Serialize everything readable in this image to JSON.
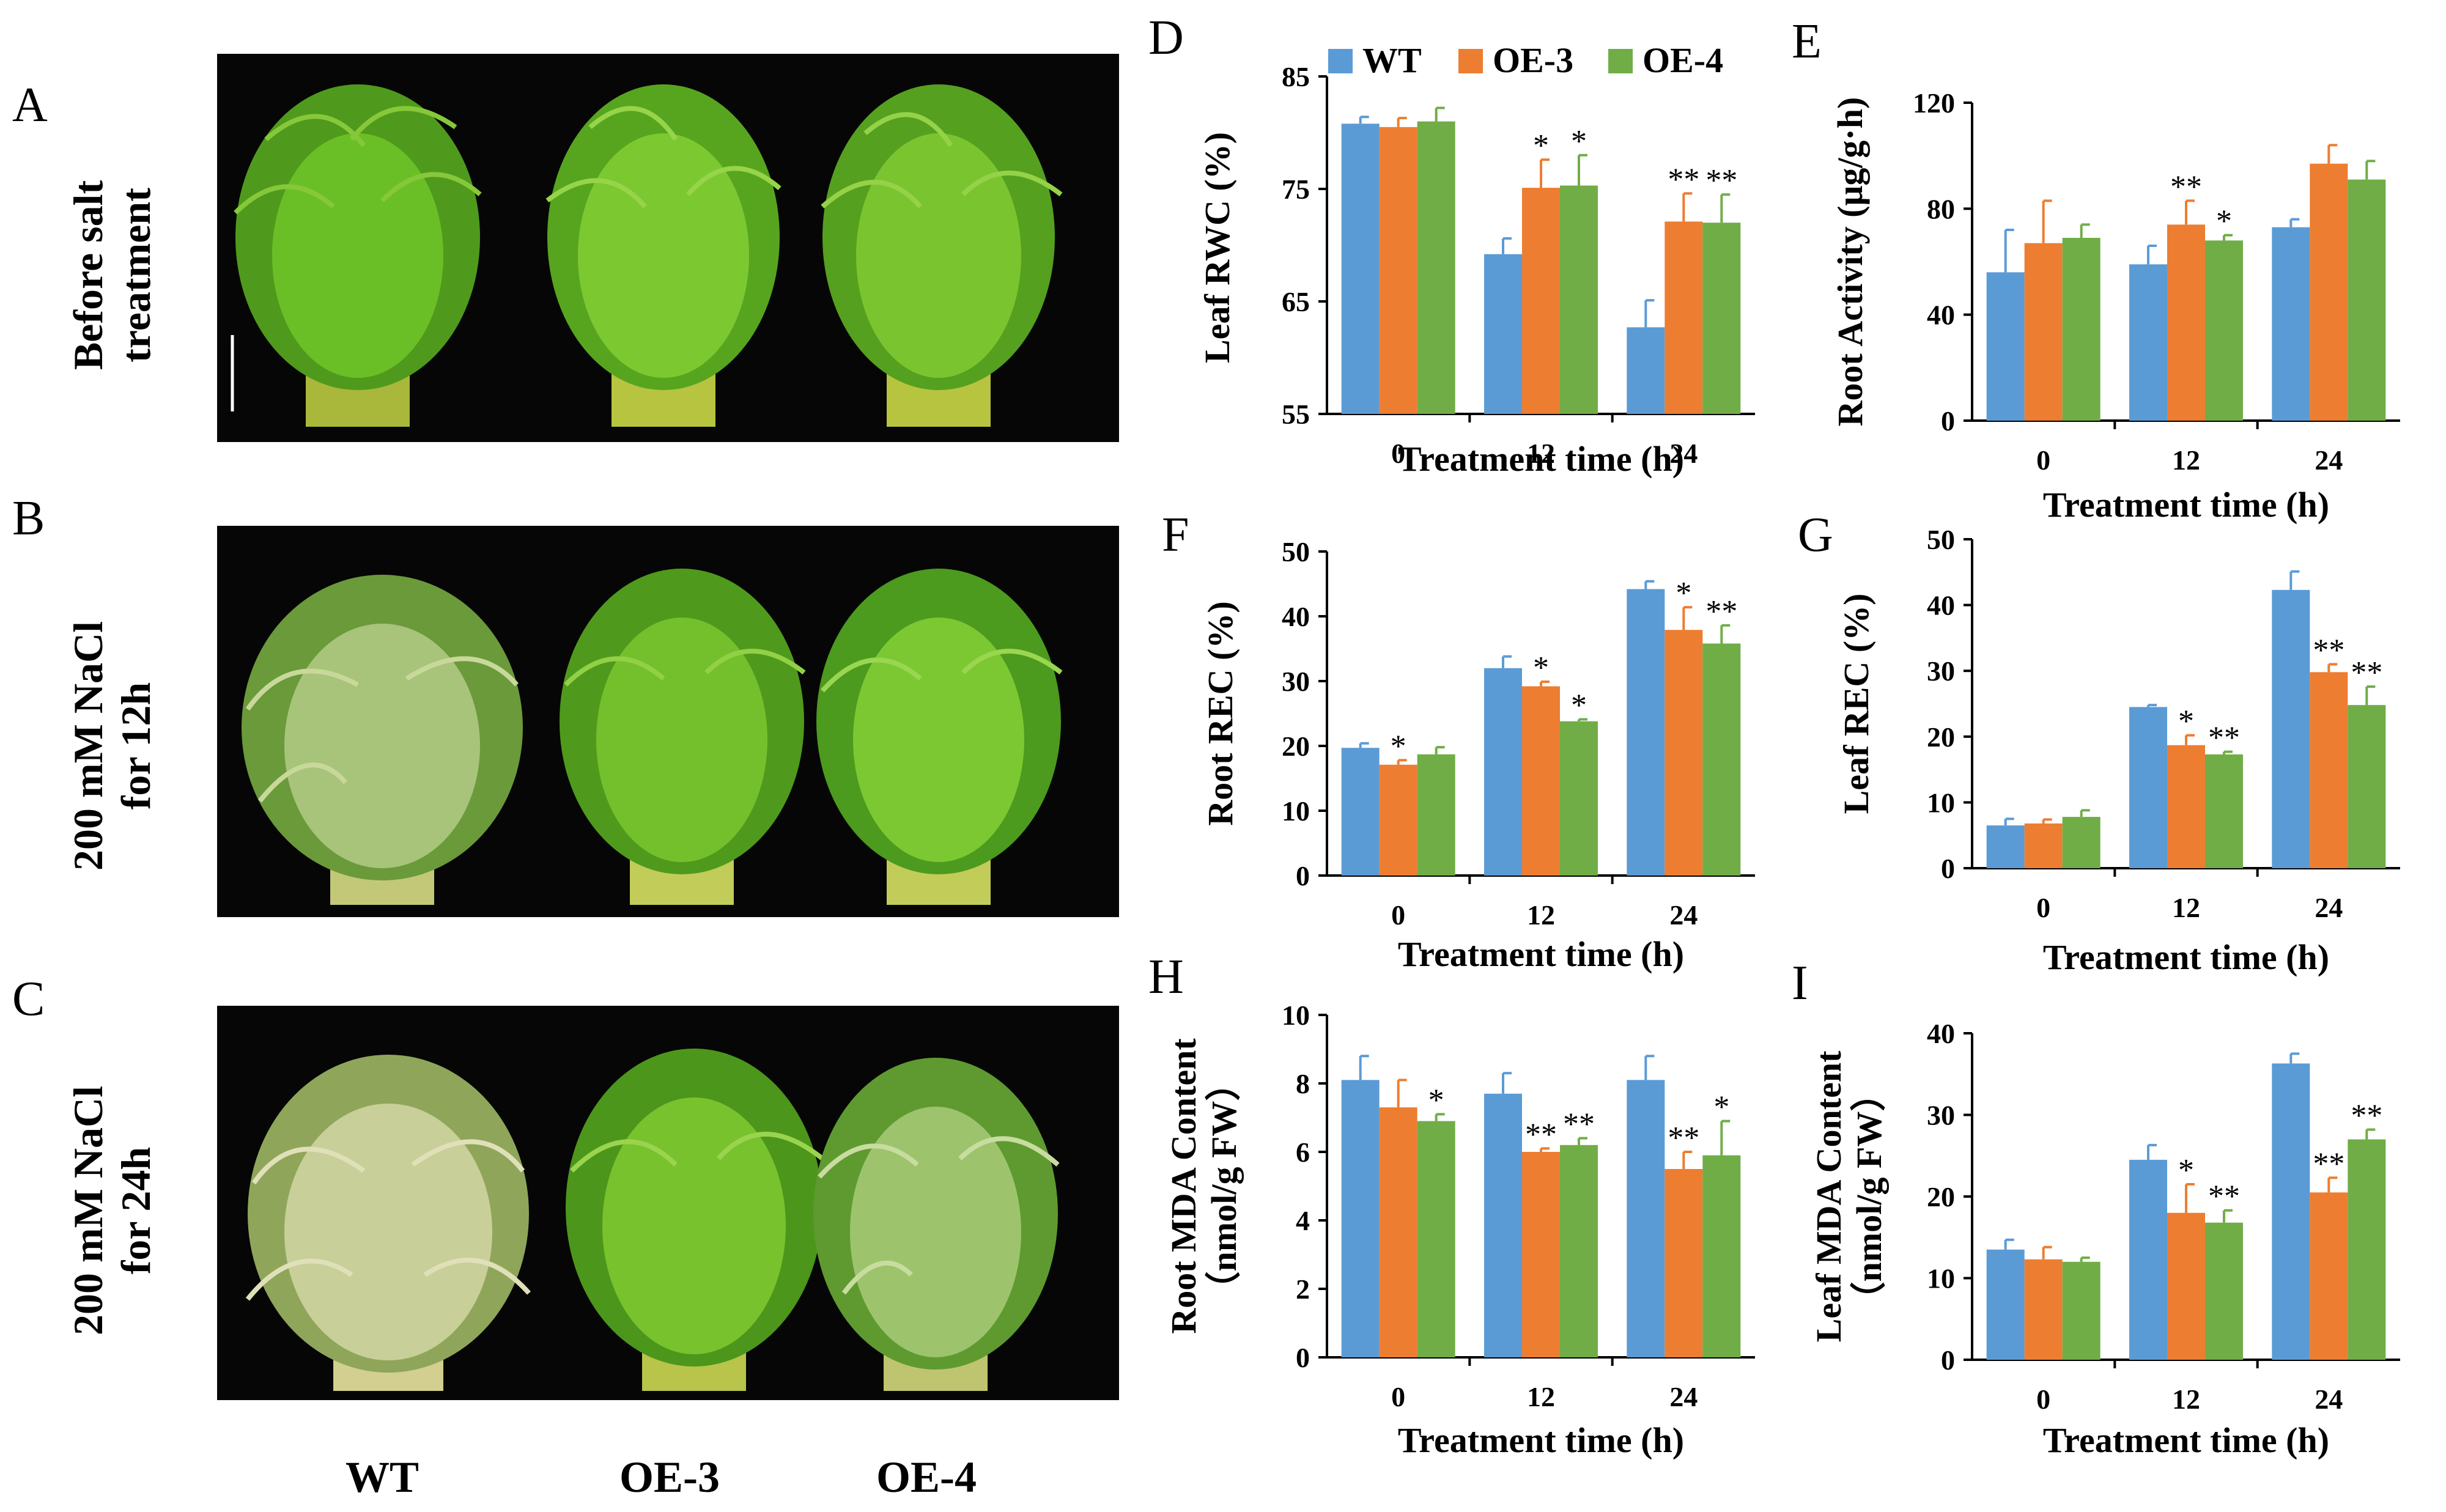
{
  "panel_letters": {
    "A": "A",
    "B": "B",
    "C": "C",
    "D": "D",
    "E": "E",
    "F": "F",
    "G": "G",
    "H": "H",
    "I": "I"
  },
  "photos": {
    "row_labels": [
      [
        "Before salt",
        "treatment"
      ],
      [
        "200 mM NaCl",
        "for 12h"
      ],
      [
        "200 mM NaCl",
        "for 24h"
      ]
    ],
    "column_labels": [
      "WT",
      "OE-3",
      "OE-4"
    ]
  },
  "legend": [
    {
      "name": "WT",
      "color": "#5B9BD5"
    },
    {
      "name": "OE-3",
      "color": "#ED7D31"
    },
    {
      "name": "OE-4",
      "color": "#70AD47"
    }
  ],
  "chart_data": [
    {
      "id": "D",
      "type": "bar",
      "categories": [
        "0",
        "12",
        "24"
      ],
      "xlabel": "Treatment time (h)",
      "ylabel": [
        "Leaf RWC (%)"
      ],
      "ylim": [
        55,
        85
      ],
      "yticks": [
        55,
        65,
        75,
        85
      ],
      "series": [
        {
          "name": "WT",
          "values": [
            80.8,
            69.2,
            62.7
          ],
          "errors": [
            0.6,
            1.4,
            2.4
          ],
          "stars": [
            "",
            "",
            ""
          ]
        },
        {
          "name": "OE-3",
          "values": [
            80.5,
            75.1,
            72.1
          ],
          "errors": [
            0.8,
            2.5,
            2.5
          ],
          "stars": [
            "",
            "*",
            "**"
          ]
        },
        {
          "name": "OE-4",
          "values": [
            81.0,
            75.3,
            72.0
          ],
          "errors": [
            1.2,
            2.7,
            2.5
          ],
          "stars": [
            "",
            "*",
            "**"
          ]
        }
      ]
    },
    {
      "id": "E",
      "type": "bar",
      "categories": [
        "0",
        "12",
        "24"
      ],
      "xlabel": "Treatment time (h)",
      "ylabel": [
        "Root Activity (μg/g·h)"
      ],
      "ylim": [
        0,
        120
      ],
      "yticks": [
        0,
        40,
        80,
        120
      ],
      "series": [
        {
          "name": "WT",
          "values": [
            56,
            59,
            73
          ],
          "errors": [
            16,
            7,
            3
          ],
          "stars": [
            "",
            "",
            ""
          ]
        },
        {
          "name": "OE-3",
          "values": [
            67,
            74,
            97
          ],
          "errors": [
            16,
            9,
            7
          ],
          "stars": [
            "",
            "**",
            ""
          ]
        },
        {
          "name": "OE-4",
          "values": [
            69,
            68,
            91
          ],
          "errors": [
            5,
            2,
            7
          ],
          "stars": [
            "",
            "*",
            ""
          ]
        }
      ]
    },
    {
      "id": "F",
      "type": "bar",
      "categories": [
        "0",
        "12",
        "24"
      ],
      "xlabel": "Treatment time (h)",
      "ylabel": [
        "Root REC (%)"
      ],
      "ylim": [
        0,
        50
      ],
      "yticks": [
        0,
        10,
        20,
        30,
        40,
        50
      ],
      "series": [
        {
          "name": "WT",
          "values": [
            19.7,
            32.0,
            44.2
          ],
          "errors": [
            0.7,
            1.8,
            1.2
          ],
          "stars": [
            "",
            "",
            ""
          ]
        },
        {
          "name": "OE-3",
          "values": [
            17.1,
            29.2,
            37.9
          ],
          "errors": [
            0.7,
            0.7,
            3.5
          ],
          "stars": [
            "*",
            "*",
            "*"
          ]
        },
        {
          "name": "OE-4",
          "values": [
            18.7,
            23.8,
            35.8
          ],
          "errors": [
            1.1,
            0.3,
            2.8
          ],
          "stars": [
            "",
            "*",
            "**"
          ]
        }
      ]
    },
    {
      "id": "G",
      "type": "bar",
      "categories": [
        "0",
        "12",
        "24"
      ],
      "xlabel": "Treatment time (h)",
      "ylabel": [
        "Leaf REC (%)"
      ],
      "ylim": [
        0,
        50
      ],
      "yticks": [
        0,
        10,
        20,
        30,
        40,
        50
      ],
      "series": [
        {
          "name": "WT",
          "values": [
            6.5,
            24.5,
            42.3
          ],
          "errors": [
            1.0,
            0.3,
            2.8
          ],
          "stars": [
            "",
            "",
            ""
          ]
        },
        {
          "name": "OE-3",
          "values": [
            6.8,
            18.7,
            29.8
          ],
          "errors": [
            0.6,
            1.5,
            1.2
          ],
          "stars": [
            "",
            "*",
            "**"
          ]
        },
        {
          "name": "OE-4",
          "values": [
            7.8,
            17.3,
            24.8
          ],
          "errors": [
            1.0,
            0.4,
            2.8
          ],
          "stars": [
            "",
            "**",
            "**"
          ]
        }
      ]
    },
    {
      "id": "H",
      "type": "bar",
      "categories": [
        "0",
        "12",
        "24"
      ],
      "xlabel": "Treatment time (h)",
      "ylabel": [
        "Root MDA Content",
        "（nmol/g FW）"
      ],
      "ylim": [
        0,
        10
      ],
      "yticks": [
        0,
        2,
        4,
        6,
        8,
        10
      ],
      "series": [
        {
          "name": "WT",
          "values": [
            8.1,
            7.7,
            8.1
          ],
          "errors": [
            0.7,
            0.6,
            0.7
          ],
          "stars": [
            "",
            "",
            ""
          ]
        },
        {
          "name": "OE-3",
          "values": [
            7.3,
            6.0,
            5.5
          ],
          "errors": [
            0.8,
            0.1,
            0.5
          ],
          "stars": [
            "",
            "**",
            "**"
          ]
        },
        {
          "name": "OE-4",
          "values": [
            6.9,
            6.2,
            5.9
          ],
          "errors": [
            0.2,
            0.2,
            1.0
          ],
          "stars": [
            "*",
            "**",
            "*"
          ]
        }
      ]
    },
    {
      "id": "I",
      "type": "bar",
      "categories": [
        "0",
        "12",
        "24"
      ],
      "xlabel": "Treatment time (h)",
      "ylabel": [
        "Leaf MDA Content",
        "（nmol/g FW）"
      ],
      "ylim": [
        0,
        40
      ],
      "yticks": [
        0,
        10,
        20,
        30,
        40
      ],
      "series": [
        {
          "name": "WT",
          "values": [
            13.5,
            24.5,
            36.3
          ],
          "errors": [
            1.2,
            1.8,
            1.2
          ],
          "stars": [
            "",
            "",
            ""
          ]
        },
        {
          "name": "OE-3",
          "values": [
            12.3,
            18.0,
            20.5
          ],
          "errors": [
            1.5,
            3.5,
            1.8
          ],
          "stars": [
            "",
            "*",
            "**"
          ]
        },
        {
          "name": "OE-4",
          "values": [
            12.0,
            16.8,
            27.0
          ],
          "errors": [
            0.5,
            1.5,
            1.2
          ],
          "stars": [
            "",
            "**",
            "**"
          ]
        }
      ]
    }
  ]
}
